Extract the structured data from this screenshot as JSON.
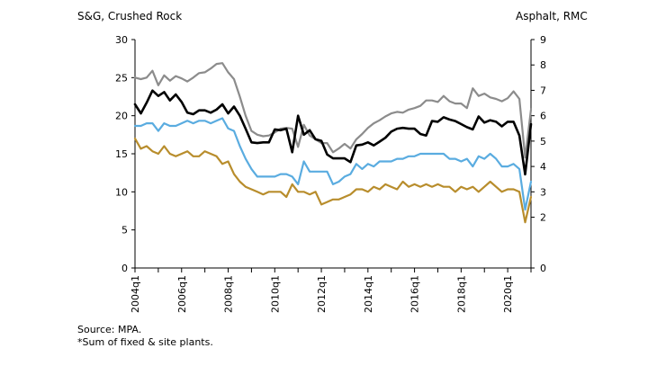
{
  "chart_data": {
    "type": "line",
    "y_left_label": "S&G, Crushed Rock",
    "y_right_label": "Asphalt, RMC",
    "y_left_range": [
      0,
      30
    ],
    "y_left_ticks": [
      0,
      5,
      10,
      15,
      20,
      25,
      30
    ],
    "y_right_range": [
      0,
      9
    ],
    "y_right_ticks": [
      0,
      2,
      3,
      4,
      5,
      6,
      7,
      8,
      9
    ],
    "x_tick_labels": [
      "2004q1",
      "2006q1",
      "2008q1",
      "2010q1",
      "2012q1",
      "2014q1",
      "2016q1",
      "2018q1",
      "2020q1"
    ],
    "x_start": "2004q1",
    "frequency": "quarterly",
    "grid": false,
    "legend": "none",
    "series": [
      {
        "color": "#8c8c8c",
        "axis": "left",
        "values": [
          25,
          24.8,
          25,
          25.9,
          24,
          25.3,
          24.6,
          25.2,
          24.9,
          24.5,
          25,
          25.6,
          25.7,
          26.2,
          26.8,
          26.9,
          25.7,
          24.8,
          22.5,
          20,
          18,
          17.5,
          17.3,
          17.4,
          17.8,
          18.3,
          18.4,
          18.3,
          15.9,
          18.8,
          17.4,
          16.9,
          16.4,
          16.4,
          15.2,
          15.7,
          16.3,
          15.7,
          16.9,
          17.6,
          18.4,
          19,
          19.4,
          19.9,
          20.3,
          20.5,
          20.4,
          20.8,
          21,
          21.3,
          22,
          22,
          21.8,
          22.6,
          21.9,
          21.6,
          21.6,
          21,
          23.6,
          22.6,
          22.9,
          22.4,
          22.2,
          21.9,
          22.3,
          23.2,
          22.2,
          14.5,
          20.8
        ]
      },
      {
        "color": "#000000",
        "axis": "left",
        "values": [
          21.5,
          20.3,
          21.7,
          23.3,
          22.6,
          23.1,
          22,
          22.8,
          21.8,
          20.4,
          20.2,
          20.7,
          20.7,
          20.4,
          20.8,
          21.5,
          20.3,
          21.2,
          20,
          18.3,
          16.5,
          16.4,
          16.5,
          16.5,
          18.2,
          18.1,
          18.3,
          15.2,
          20,
          17.5,
          18.1,
          16.9,
          16.7,
          14.9,
          14.4,
          14.4,
          14.4,
          13.9,
          16.1,
          16.2,
          16.5,
          16.1,
          16.6,
          17.1,
          17.9,
          18.3,
          18.4,
          18.3,
          18.3,
          17.6,
          17.4,
          19.3,
          19.2,
          19.8,
          19.5,
          19.3,
          18.9,
          18.5,
          18.2,
          19.9,
          19.1,
          19.4,
          19.2,
          18.6,
          19.2,
          19.2,
          17.4,
          12.3,
          18.9
        ]
      },
      {
        "color": "#5aace0",
        "axis": "right",
        "values": [
          5.6,
          5.6,
          5.7,
          5.7,
          5.4,
          5.7,
          5.6,
          5.6,
          5.7,
          5.8,
          5.7,
          5.8,
          5.8,
          5.7,
          5.8,
          5.9,
          5.5,
          5.4,
          4.8,
          4.3,
          3.9,
          3.6,
          3.6,
          3.6,
          3.6,
          3.7,
          3.7,
          3.6,
          3.3,
          4.2,
          3.8,
          3.8,
          3.8,
          3.8,
          3.3,
          3.4,
          3.6,
          3.7,
          4.1,
          3.9,
          4.1,
          4,
          4.2,
          4.2,
          4.2,
          4.3,
          4.3,
          4.4,
          4.4,
          4.5,
          4.5,
          4.5,
          4.5,
          4.5,
          4.3,
          4.3,
          4.2,
          4.3,
          4,
          4.4,
          4.3,
          4.5,
          4.3,
          4,
          4,
          4.1,
          3.9,
          2.3,
          3.4
        ]
      },
      {
        "color": "#b88d2c",
        "axis": "right",
        "values": [
          5.1,
          4.7,
          4.8,
          4.6,
          4.5,
          4.8,
          4.5,
          4.4,
          4.5,
          4.6,
          4.4,
          4.4,
          4.6,
          4.5,
          4.4,
          4.1,
          4.2,
          3.7,
          3.4,
          3.2,
          3.1,
          3,
          2.9,
          3,
          3,
          3,
          2.8,
          3.3,
          3,
          3,
          2.9,
          3,
          2.5,
          2.6,
          2.7,
          2.7,
          2.8,
          2.9,
          3.1,
          3.1,
          3,
          3.2,
          3.1,
          3.3,
          3.2,
          3.1,
          3.4,
          3.2,
          3.3,
          3.2,
          3.3,
          3.2,
          3.3,
          3.2,
          3.2,
          3,
          3.2,
          3.1,
          3.2,
          3,
          3.2,
          3.4,
          3.2,
          3,
          3.1,
          3.1,
          3,
          1.8,
          2.8
        ]
      }
    ]
  },
  "notes": {
    "source": "Source: MPA.",
    "footnote": "*Sum of fixed & site plants."
  }
}
